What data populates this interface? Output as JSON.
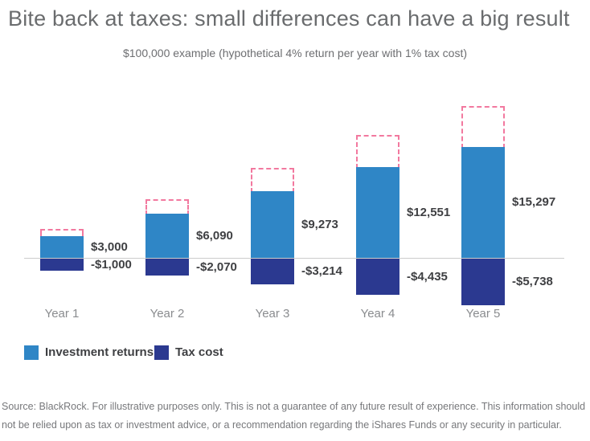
{
  "header": {
    "title": "Bite back at taxes: small differences can have a big result",
    "subtitle": "$100,000 example (hypothetical 4% return per year with 1% tax cost)"
  },
  "chart_data": {
    "type": "bar",
    "title": "Bite back at taxes: small differences can have a big result",
    "subtitle": "$100,000 example (hypothetical 4% return per year with 1% tax cost)",
    "categories": [
      "Year 1",
      "Year 2",
      "Year 3",
      "Year 4",
      "Year 5"
    ],
    "series": [
      {
        "name": "Investment returns",
        "color": "#2f86c6",
        "values": [
          3000,
          6090,
          9273,
          12551,
          15297
        ],
        "labels": [
          "$3,000",
          "$6,090",
          "$9,273",
          "$12,551",
          "$15,297"
        ]
      },
      {
        "name": "Tax cost",
        "color": "#2b3990",
        "values": [
          -1000,
          -2070,
          -3214,
          -4435,
          -5738
        ],
        "labels": [
          "-$1,000",
          "-$2,070",
          "-$3,214",
          "-$4,435",
          "-$5,738"
        ]
      }
    ],
    "pretax_outline": {
      "name": "Returns before tax cost (dashed outline)",
      "color": "#f2799f",
      "values": [
        4000,
        8160,
        12487,
        16986,
        21035
      ]
    },
    "axis": {
      "baseline": 0,
      "value_axis": "hidden",
      "gridlines": false,
      "baseline_color": "#cccccc",
      "legend_position": "bottom-left"
    }
  },
  "footer": {
    "source_text": "Source: BlackRock. For illustrative purposes only. This is not a guarantee of any future result of experience. This information should not be relied upon as tax or investment advice, or a recommendation regarding the iShares Funds or any security in particular."
  },
  "colors": {
    "investment_returns": "#2f86c6",
    "tax_cost": "#2b3990",
    "pretax_outline": "#f2799f",
    "axis_line": "#cccccc",
    "title_text": "#6a6c6e",
    "value_label_text": "#3f4043",
    "year_label_text": "#8a8c8f",
    "footer_text": "#77787b"
  }
}
